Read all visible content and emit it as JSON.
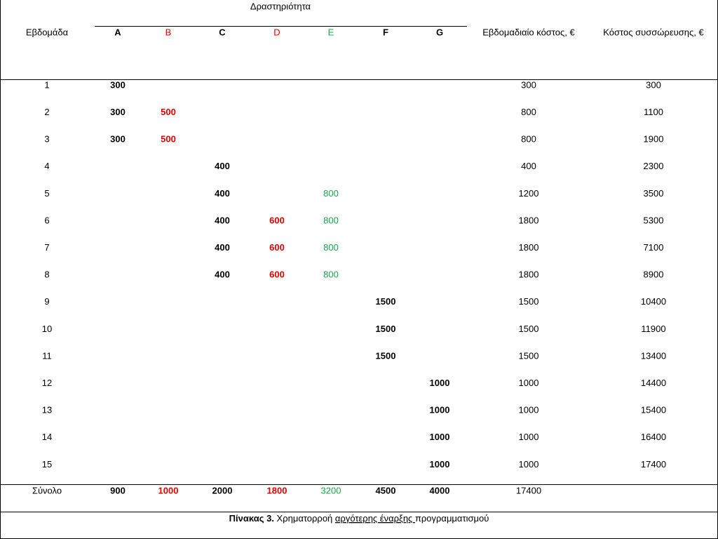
{
  "table": {
    "group_header": "Δραστηριότητα",
    "columns": [
      "Εβδομάδα",
      "A",
      "B",
      "C",
      "D",
      "E",
      "F",
      "G",
      "Εβδομαδιαίο κόστος, €",
      "Κόστος συσσώρευσης, €"
    ],
    "rows": [
      [
        1,
        300,
        null,
        null,
        null,
        null,
        null,
        null,
        300,
        300
      ],
      [
        2,
        300,
        500,
        null,
        null,
        null,
        null,
        null,
        800,
        1100
      ],
      [
        3,
        300,
        500,
        null,
        null,
        null,
        null,
        null,
        800,
        1900
      ],
      [
        4,
        null,
        null,
        400,
        null,
        null,
        null,
        null,
        400,
        2300
      ],
      [
        5,
        null,
        null,
        400,
        null,
        800,
        null,
        null,
        1200,
        3500
      ],
      [
        6,
        null,
        null,
        400,
        600,
        800,
        null,
        null,
        1800,
        5300
      ],
      [
        7,
        null,
        null,
        400,
        600,
        800,
        null,
        null,
        1800,
        7100
      ],
      [
        8,
        null,
        null,
        400,
        600,
        800,
        null,
        null,
        1800,
        8900
      ],
      [
        9,
        null,
        null,
        null,
        null,
        null,
        1500,
        null,
        1500,
        10400
      ],
      [
        10,
        null,
        null,
        null,
        null,
        null,
        1500,
        null,
        1500,
        11900
      ],
      [
        11,
        null,
        null,
        null,
        null,
        null,
        1500,
        null,
        1500,
        13400
      ],
      [
        12,
        null,
        null,
        null,
        null,
        null,
        null,
        1000,
        1000,
        14400
      ],
      [
        13,
        null,
        null,
        null,
        null,
        null,
        null,
        1000,
        1000,
        15400
      ],
      [
        14,
        null,
        null,
        null,
        null,
        null,
        null,
        1000,
        1000,
        16400
      ],
      [
        15,
        null,
        null,
        null,
        null,
        null,
        null,
        1000,
        1000,
        17400
      ]
    ],
    "total_row": [
      "Σύνολο",
      900,
      1000,
      2000,
      1800,
      3200,
      4500,
      4000,
      17400,
      null
    ]
  },
  "caption": {
    "label": "Πίνακας 3.",
    "text": "Χρηματορροή ",
    "underlined": "αργότερης έναρξης ",
    "rest": "προγραμματισμού"
  }
}
